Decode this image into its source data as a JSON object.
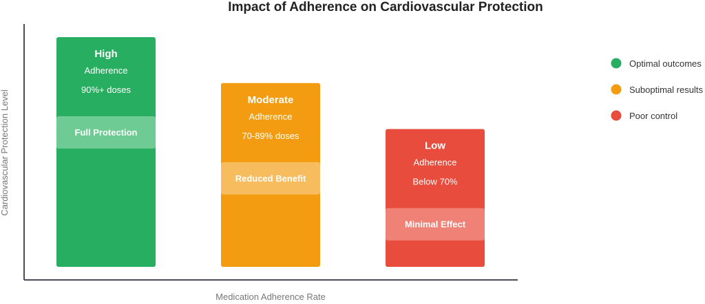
{
  "chart_data": {
    "type": "bar",
    "title": "Impact of Adherence on Cardiovascular Protection",
    "xlabel": "Medication Adherence Rate",
    "ylabel": "Cardiovascular Protection Level",
    "grid": false,
    "legend_placement": "right",
    "categories": [
      "High",
      "Moderate",
      "Low"
    ],
    "relative_level": [
      1.0,
      0.8,
      0.6
    ],
    "bars": [
      {
        "title": "High",
        "line1": "Adherence",
        "line2": "90%+ doses",
        "band": "Full Protection",
        "color": "#27ae60",
        "band_color": "#6dcb93"
      },
      {
        "title": "Moderate",
        "line1": "Adherence",
        "line2": "70-89% doses",
        "band": "Reduced Benefit",
        "color": "#f39c12",
        "band_color": "#f7bc5d"
      },
      {
        "title": "Low",
        "line1": "Adherence",
        "line2": "Below 70%",
        "band": "Minimal Effect",
        "color": "#e74c3c",
        "band_color": "#ef8177"
      }
    ],
    "legend": [
      {
        "label": "Optimal outcomes",
        "color": "#27ae60"
      },
      {
        "label": "Suboptimal results",
        "color": "#f39c12"
      },
      {
        "label": "Poor control",
        "color": "#e74c3c"
      }
    ]
  }
}
